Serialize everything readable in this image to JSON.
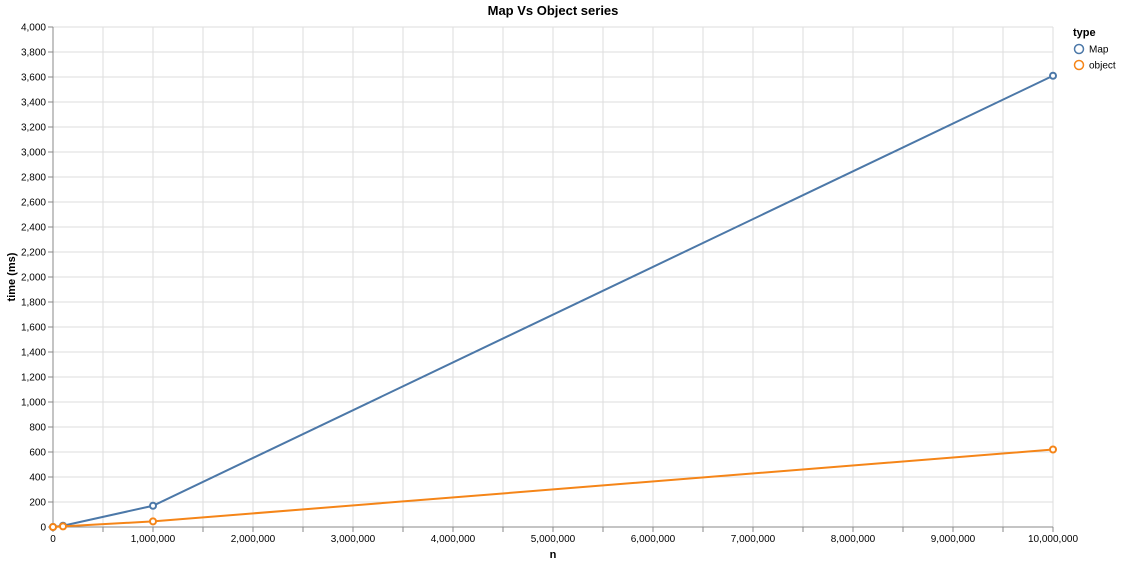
{
  "chart_data": {
    "type": "line",
    "title": "Map Vs Object series",
    "xlabel": "n",
    "ylabel": "time (ms)",
    "xlim": [
      0,
      10000000
    ],
    "ylim": [
      0,
      4000
    ],
    "x_ticks": [
      0,
      1000000,
      2000000,
      3000000,
      4000000,
      5000000,
      6000000,
      7000000,
      8000000,
      9000000,
      10000000
    ],
    "x_tick_labels": [
      "0",
      "1,000,000",
      "2,000,000",
      "3,000,000",
      "4,000,000",
      "5,000,000",
      "6,000,000",
      "7,000,000",
      "8,000,000",
      "9,000,000",
      "10,000,000"
    ],
    "y_ticks": [
      0,
      200,
      400,
      600,
      800,
      1000,
      1200,
      1400,
      1600,
      1800,
      2000,
      2200,
      2400,
      2600,
      2800,
      3000,
      3200,
      3400,
      3600,
      3800,
      4000
    ],
    "y_tick_labels": [
      "0",
      "200",
      "400",
      "600",
      "800",
      "1,000",
      "1,200",
      "1,400",
      "1,600",
      "1,800",
      "2,000",
      "2,200",
      "2,400",
      "2,600",
      "2,800",
      "3,000",
      "3,200",
      "3,400",
      "3,600",
      "3,800",
      "4,000"
    ],
    "grid": true,
    "legend": {
      "title": "type",
      "position": "top-right"
    },
    "series": [
      {
        "name": "Map",
        "color": "#4c78a8",
        "points": [
          [
            0,
            0
          ],
          [
            100000,
            10
          ],
          [
            1000000,
            170
          ],
          [
            10000000,
            3610
          ]
        ]
      },
      {
        "name": "object",
        "color": "#f58518",
        "points": [
          [
            0,
            0
          ],
          [
            100000,
            5
          ],
          [
            1000000,
            45
          ],
          [
            10000000,
            620
          ]
        ]
      }
    ]
  }
}
